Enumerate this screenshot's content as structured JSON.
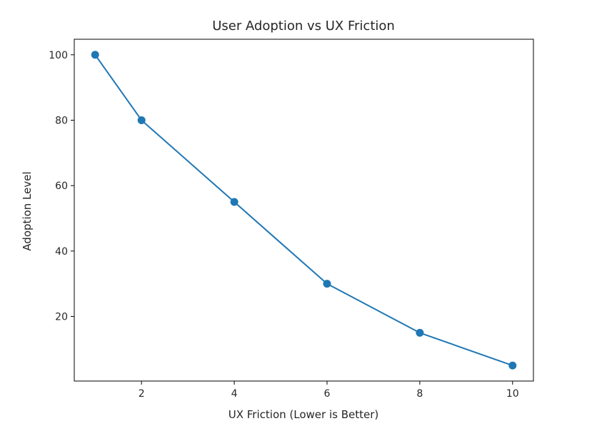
{
  "chart_data": {
    "type": "line",
    "title": "User Adoption vs UX Friction",
    "xlabel": "UX Friction (Lower is Better)",
    "ylabel": "Adoption Level",
    "x": [
      1,
      2,
      4,
      6,
      8,
      10
    ],
    "series": [
      {
        "values": [
          100,
          80,
          55,
          30,
          15,
          5
        ],
        "color": "#1f77b4",
        "marker": "circle"
      }
    ],
    "xlim": [
      0.55,
      10.45
    ],
    "ylim": [
      0.25,
      104.75
    ],
    "xticks": [
      2,
      4,
      6,
      8,
      10
    ],
    "yticks": [
      20,
      40,
      60,
      80,
      100
    ],
    "grid": false,
    "legend": "none"
  }
}
